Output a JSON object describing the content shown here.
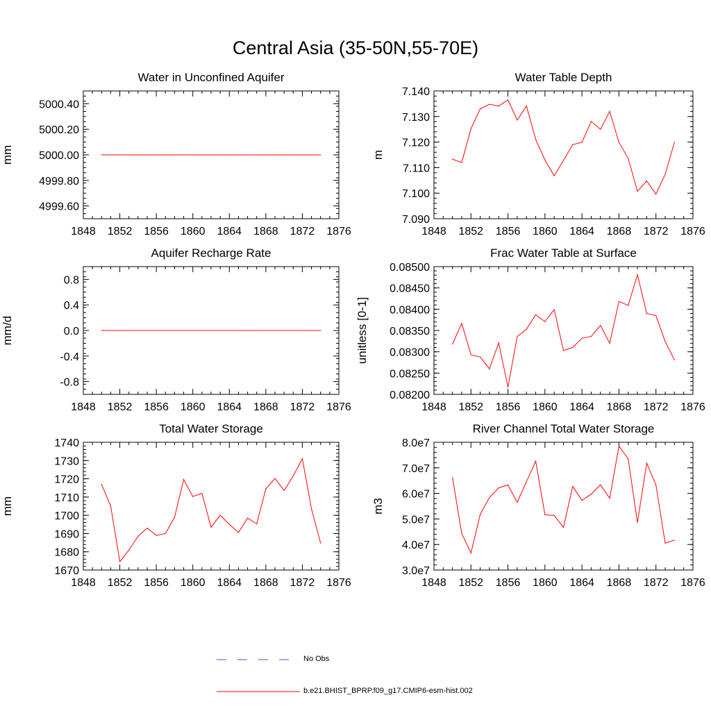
{
  "title": "Central Asia (35-50N,55-70E)",
  "chart_data": [
    {
      "type": "line",
      "title": "Water in Unconfined Aquifer",
      "ylabel": "mm",
      "xlim": [
        1848,
        1876
      ],
      "xticks": [
        1848,
        1852,
        1856,
        1860,
        1864,
        1868,
        1872,
        1876
      ],
      "ylim": [
        4999.5,
        5000.5
      ],
      "yticks": [
        "4999.60",
        "4999.80",
        "5000.00",
        "5000.20",
        "5000.40"
      ],
      "ytick_values": [
        4999.6,
        4999.8,
        5000.0,
        5000.2,
        5000.4
      ],
      "ytick_minor": 0.04,
      "series": [
        {
          "name": "b.e21.BHIST_BPRP.f09_g17.CMIP6-esm-hist.002",
          "color": "#ff0000",
          "x": [
            1850,
            1851,
            1852,
            1853,
            1854,
            1855,
            1856,
            1857,
            1858,
            1859,
            1860,
            1861,
            1862,
            1863,
            1864,
            1865,
            1866,
            1867,
            1868,
            1869,
            1870,
            1871,
            1872,
            1873,
            1874
          ],
          "y": [
            5000,
            5000,
            5000,
            5000,
            5000,
            5000,
            5000,
            5000,
            5000,
            5000,
            5000,
            5000,
            5000,
            5000,
            5000,
            5000,
            5000,
            5000,
            5000,
            5000,
            5000,
            5000,
            5000,
            5000,
            5000
          ]
        }
      ]
    },
    {
      "type": "line",
      "title": "Water Table Depth",
      "ylabel": "m",
      "xlim": [
        1848,
        1876
      ],
      "xticks": [
        1848,
        1852,
        1856,
        1860,
        1864,
        1868,
        1872,
        1876
      ],
      "ylim": [
        7.09,
        7.14
      ],
      "yticks": [
        "7.090",
        "7.100",
        "7.110",
        "7.120",
        "7.130",
        "7.140"
      ],
      "ytick_values": [
        7.09,
        7.1,
        7.11,
        7.12,
        7.13,
        7.14
      ],
      "ytick_minor": 0.002,
      "series": [
        {
          "name": "b.e21.BHIST_BPRP.f09_g17.CMIP6-esm-hist.002",
          "color": "#ff0000",
          "x": [
            1850,
            1851,
            1852,
            1853,
            1854,
            1855,
            1856,
            1857,
            1858,
            1859,
            1860,
            1861,
            1862,
            1863,
            1864,
            1865,
            1866,
            1867,
            1868,
            1869,
            1870,
            1871,
            1872,
            1873,
            1874
          ],
          "y": [
            7.1133,
            7.112,
            7.1252,
            7.133,
            7.1348,
            7.1341,
            7.1365,
            7.1286,
            7.1341,
            7.121,
            7.113,
            7.1068,
            7.1128,
            7.119,
            7.1199,
            7.1281,
            7.125,
            7.132,
            7.1199,
            7.1136,
            7.1007,
            7.1048,
            7.0996,
            7.1074,
            7.1199
          ]
        }
      ]
    },
    {
      "type": "line",
      "title": "Aquifer Recharge Rate",
      "ylabel": "mm/d",
      "xlim": [
        1848,
        1876
      ],
      "xticks": [
        1848,
        1852,
        1856,
        1860,
        1864,
        1868,
        1872,
        1876
      ],
      "ylim": [
        -1.0,
        1.0
      ],
      "yticks": [
        "-0.8",
        "-0.4",
        "0.0",
        "0.4",
        "0.8"
      ],
      "ytick_values": [
        -0.8,
        -0.4,
        0.0,
        0.4,
        0.8
      ],
      "ytick_minor": 0.08,
      "series": [
        {
          "name": "b.e21.BHIST_BPRP.f09_g17.CMIP6-esm-hist.002",
          "color": "#ff0000",
          "x": [
            1850,
            1851,
            1852,
            1853,
            1854,
            1855,
            1856,
            1857,
            1858,
            1859,
            1860,
            1861,
            1862,
            1863,
            1864,
            1865,
            1866,
            1867,
            1868,
            1869,
            1870,
            1871,
            1872,
            1873,
            1874
          ],
          "y": [
            0,
            0,
            0,
            0,
            0,
            0,
            0,
            0,
            0,
            0,
            0,
            0,
            0,
            0,
            0,
            0,
            0,
            0,
            0,
            0,
            0,
            0,
            0,
            0,
            0
          ]
        }
      ]
    },
    {
      "type": "line",
      "title": "Frac Water Table at Surface",
      "ylabel": "unitless [0-1]",
      "xlim": [
        1848,
        1876
      ],
      "xticks": [
        1848,
        1852,
        1856,
        1860,
        1864,
        1868,
        1872,
        1876
      ],
      "ylim": [
        0.082,
        0.085
      ],
      "yticks": [
        "0.08200",
        "0.08250",
        "0.08300",
        "0.08350",
        "0.08400",
        "0.08450",
        "0.08500"
      ],
      "ytick_values": [
        0.082,
        0.0825,
        0.083,
        0.0835,
        0.084,
        0.0845,
        0.085
      ],
      "ytick_minor": 0.0001,
      "series": [
        {
          "name": "b.e21.BHIST_BPRP.f09_g17.CMIP6-esm-hist.002",
          "color": "#ff0000",
          "x": [
            1850,
            1851,
            1852,
            1853,
            1854,
            1855,
            1856,
            1857,
            1858,
            1859,
            1860,
            1861,
            1862,
            1863,
            1864,
            1865,
            1866,
            1867,
            1868,
            1869,
            1870,
            1871,
            1872,
            1873,
            1874
          ],
          "y": [
            0.08318,
            0.08367,
            0.08293,
            0.08288,
            0.0826,
            0.08321,
            0.08217,
            0.08336,
            0.08353,
            0.08387,
            0.08371,
            0.08399,
            0.08303,
            0.0831,
            0.08332,
            0.08336,
            0.08362,
            0.0832,
            0.08418,
            0.08409,
            0.08481,
            0.0839,
            0.08385,
            0.08324,
            0.08281
          ]
        }
      ]
    },
    {
      "type": "line",
      "title": "Total Water Storage",
      "ylabel": "mm",
      "xlim": [
        1848,
        1876
      ],
      "xticks": [
        1848,
        1852,
        1856,
        1860,
        1864,
        1868,
        1872,
        1876
      ],
      "ylim": [
        1670,
        1740
      ],
      "yticks": [
        "1670",
        "1680",
        "1690",
        "1700",
        "1710",
        "1720",
        "1730",
        "1740"
      ],
      "ytick_values": [
        1670,
        1680,
        1690,
        1700,
        1710,
        1720,
        1730,
        1740
      ],
      "ytick_minor": 2,
      "series": [
        {
          "name": "b.e21.BHIST_BPRP.f09_g17.CMIP6-esm-hist.002",
          "color": "#ff0000",
          "x": [
            1850,
            1851,
            1852,
            1853,
            1854,
            1855,
            1856,
            1857,
            1858,
            1859,
            1860,
            1861,
            1862,
            1863,
            1864,
            1865,
            1866,
            1867,
            1868,
            1869,
            1870,
            1871,
            1872,
            1873,
            1874
          ],
          "y": [
            1717,
            1705,
            1674.6,
            1681,
            1688.5,
            1693,
            1689,
            1690,
            1699,
            1719.6,
            1710.3,
            1712,
            1693.5,
            1700,
            1695,
            1690.6,
            1698.5,
            1695.3,
            1714.5,
            1720.2,
            1713.6,
            1721.5,
            1731,
            1703.5,
            1684.8
          ]
        }
      ]
    },
    {
      "type": "line",
      "title": "River Channel Total Water Storage",
      "ylabel": "m3",
      "xlim": [
        1848,
        1876
      ],
      "xticks": [
        1848,
        1852,
        1856,
        1860,
        1864,
        1868,
        1872,
        1876
      ],
      "ylim": [
        30000000,
        80000000
      ],
      "yticks": [
        "3.0e7",
        "4.0e7",
        "5.0e7",
        "6.0e7",
        "7.0e7",
        "8.0e7"
      ],
      "ytick_values": [
        30000000,
        40000000,
        50000000,
        60000000,
        70000000,
        80000000
      ],
      "ytick_minor": 2000000,
      "series": [
        {
          "name": "b.e21.BHIST_BPRP.f09_g17.CMIP6-esm-hist.002",
          "color": "#ff0000",
          "x": [
            1850,
            1851,
            1852,
            1853,
            1854,
            1855,
            1856,
            1857,
            1858,
            1859,
            1860,
            1861,
            1862,
            1863,
            1864,
            1865,
            1866,
            1867,
            1868,
            1869,
            1870,
            1871,
            1872,
            1873,
            1874
          ],
          "y": [
            66300000,
            44300000,
            36700000,
            51800000,
            58400000,
            62200000,
            63300000,
            56500000,
            64600000,
            72600000,
            51600000,
            51400000,
            46700000,
            62700000,
            57300000,
            59700000,
            63400000,
            58100000,
            78500000,
            73500000,
            48600000,
            71800000,
            63300000,
            40500000,
            41700000
          ]
        }
      ]
    }
  ],
  "legend": [
    {
      "label": "No Obs",
      "style": "dashed",
      "color": "#4a52b8"
    },
    {
      "label": "b.e21.BHIST_BPRP.f09_g17.CMIP6-esm-hist.002",
      "style": "solid",
      "color": "#ff0000"
    }
  ]
}
